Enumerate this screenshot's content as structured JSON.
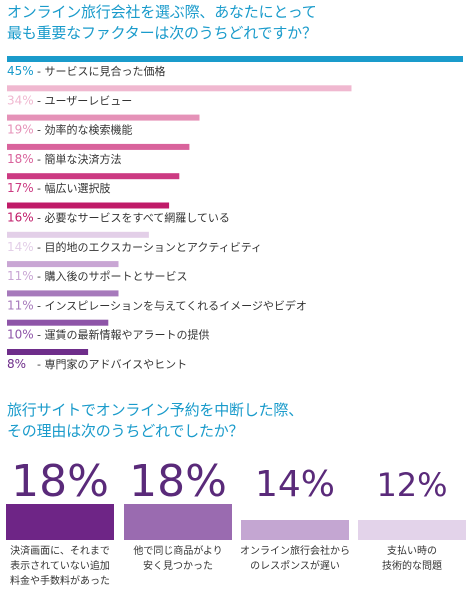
{
  "question1": {
    "line1": "オンライン旅行会社を選ぶ際、あなたにとって",
    "line2": "最も重要なファクターは次のうちどれですか？"
  },
  "question2": {
    "line1": "旅行サイトでオンライン予約を中断した際、",
    "line2": "その理由は次のうちどれでしたか？"
  },
  "chart_data": [
    {
      "type": "bar",
      "orientation": "horizontal",
      "categories": [
        "サービスに見合った価格",
        "ユーザーレビュー",
        "効率的な検索機能",
        "簡単な決済方法",
        "幅広い選択肢",
        "必要なサービスをすべて網羅している",
        "目的地のエクスカーションとアクティビティ",
        "購入後のサポートとサービス",
        "インスピレーションを与えてくれるイメージやビデオ",
        "運賃の最新情報やアラートの提供",
        "専門家のアドバイスやヒント"
      ],
      "values": [
        45,
        34,
        19,
        18,
        17,
        16,
        14,
        11,
        11,
        10,
        8
      ],
      "value_labels": [
        "45%",
        "34%",
        "19%",
        "18%",
        "17%",
        "16%",
        "14%",
        "11%",
        "11%",
        "10%",
        "8%"
      ],
      "colors": [
        "#1a9bcb",
        "#f0b8d0",
        "#e592b8",
        "#d9639c",
        "#cc3a82",
        "#c01a68",
        "#e3cfe8",
        "#c9a6d4",
        "#a679bb",
        "#8e55a8",
        "#6e2d8a"
      ]
    },
    {
      "type": "bar",
      "categories": [
        "決済画面に、それまで表示されていない追加料金や手数料があった",
        "他で同じ商品がより安く見つかった",
        "オンライン旅行会社からのレスポンスが遅い",
        "支払い時の技術的な問題"
      ],
      "category_lines": [
        [
          "決済画面に、それまで",
          "表示されていない追加",
          "料金や手数料があった"
        ],
        [
          "他で同じ商品がより",
          "安く見つかった"
        ],
        [
          "オンライン旅行会社から",
          "のレスポンスが遅い"
        ],
        [
          "支払い時の",
          "技術的な問題"
        ]
      ],
      "values": [
        18,
        18,
        14,
        12
      ],
      "value_labels": [
        "18%",
        "18%",
        "14%",
        "12%"
      ],
      "colors": [
        "#6e2586",
        "#9a6bb0",
        "#c4a6d2",
        "#e3d3ea"
      ],
      "value_color": "#5a2a7a"
    }
  ]
}
